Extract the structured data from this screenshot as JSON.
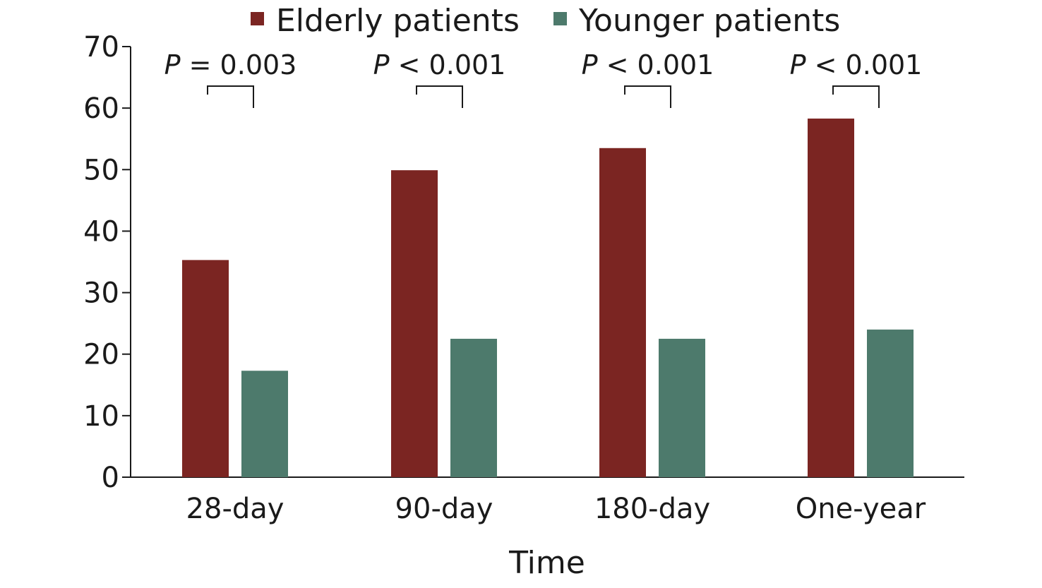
{
  "chart_data": {
    "type": "bar",
    "title": "",
    "xlabel": "Time",
    "ylabel": "",
    "ylim": [
      0,
      70
    ],
    "yticks": [
      0,
      10,
      20,
      30,
      40,
      50,
      60,
      70
    ],
    "categories": [
      "28-day",
      "90-day",
      "180-day",
      "One-year"
    ],
    "series": [
      {
        "name": "Elderly patients",
        "color": "#7b2522",
        "values": [
          35.3,
          49.9,
          53.5,
          58.3
        ]
      },
      {
        "name": "Younger patients",
        "color": "#4d7a6c",
        "values": [
          17.3,
          22.5,
          22.5,
          24.0
        ]
      }
    ],
    "annotations": [
      {
        "category": "28-day",
        "symbol": "P",
        "text": " = 0.003"
      },
      {
        "category": "90-day",
        "symbol": "P",
        "text": " < 0.001"
      },
      {
        "category": "180-day",
        "symbol": "P",
        "text": " < 0.001"
      },
      {
        "category": "One-year",
        "symbol": "P",
        "text": " < 0.001"
      }
    ],
    "legend_position": "top",
    "grid": false
  }
}
